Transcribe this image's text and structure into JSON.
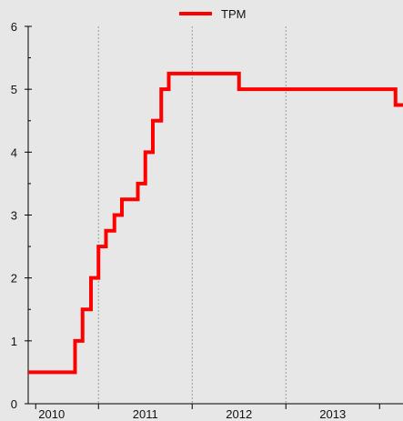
{
  "chart_data": {
    "type": "line",
    "title": "",
    "xlabel": "",
    "ylabel": "",
    "xlim": [
      2009.75,
      2013.75
    ],
    "ylim": [
      0,
      6
    ],
    "x_ticks": [
      2010,
      2011,
      2012,
      2013
    ],
    "y_ticks": [
      0,
      1,
      2,
      3,
      4,
      5,
      6
    ],
    "grid": {
      "x": true,
      "y": false
    },
    "legend": {
      "position": "top-center"
    },
    "series": [
      {
        "name": "TPM",
        "color": "#ff0000",
        "step": true,
        "points": [
          [
            2009.75,
            0.5
          ],
          [
            2010.25,
            1.0
          ],
          [
            2010.33,
            1.5
          ],
          [
            2010.42,
            2.0
          ],
          [
            2010.5,
            2.5
          ],
          [
            2010.58,
            2.75
          ],
          [
            2010.67,
            3.0
          ],
          [
            2010.75,
            3.25
          ],
          [
            2010.92,
            3.5
          ],
          [
            2011.0,
            4.0
          ],
          [
            2011.08,
            4.5
          ],
          [
            2011.17,
            5.0
          ],
          [
            2011.25,
            5.25
          ],
          [
            2012.0,
            5.0
          ],
          [
            2013.67,
            4.75
          ],
          [
            2013.75,
            4.75
          ]
        ]
      }
    ]
  }
}
